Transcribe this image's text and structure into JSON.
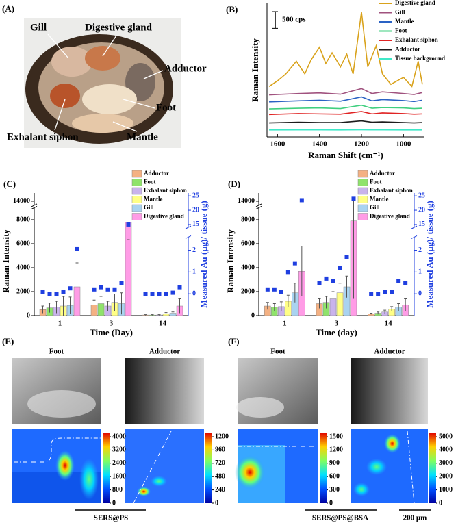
{
  "photo_panel": {
    "label": "(A)",
    "annotations": [
      "Gill",
      "Digestive gland",
      "Adductor",
      "Foot",
      "Exhalant siphon",
      "Mantle"
    ]
  },
  "chart_data": [
    {
      "type": "line",
      "panel_label": "(B)",
      "xlabel": "Raman Shift (cm⁻¹)",
      "ylabel": "Raman Intensity",
      "scale_bar": {
        "value": 500,
        "label": "500 cps"
      },
      "xlim": [
        1650,
        900
      ],
      "xticks": [
        1600,
        1400,
        1200,
        1000
      ],
      "ylim": [
        0,
        4000
      ],
      "legend": "top-right",
      "series": [
        {
          "name": "Digestive gland",
          "color": "#d9a21b",
          "x": [
            1640,
            1600,
            1560,
            1510,
            1470,
            1440,
            1400,
            1370,
            1340,
            1300,
            1270,
            1240,
            1200,
            1170,
            1130,
            1100,
            1060,
            1000,
            960,
            930,
            910
          ],
          "values": [
            1512,
            1680,
            1890,
            2268,
            1890,
            2310,
            2688,
            2205,
            2520,
            2100,
            2478,
            1890,
            3738,
            2100,
            2730,
            1890,
            1575,
            1785,
            1512,
            2268,
            1575
          ]
        },
        {
          "name": "Gill",
          "color": "#a0527e",
          "x": [
            1640,
            1500,
            1400,
            1300,
            1200,
            1150,
            1100,
            1000,
            950,
            910
          ],
          "values": [
            1260,
            1300,
            1320,
            1280,
            1450,
            1300,
            1350,
            1300,
            1270,
            1330
          ]
        },
        {
          "name": "Mantle",
          "color": "#2a62c4",
          "x": [
            1640,
            1500,
            1400,
            1300,
            1200,
            1150,
            1100,
            1000,
            950,
            910
          ],
          "values": [
            1050,
            1080,
            1100,
            1070,
            1200,
            1080,
            1120,
            1090,
            1060,
            1100
          ]
        },
        {
          "name": "Foot",
          "color": "#3fcf7f",
          "x": [
            1640,
            1500,
            1400,
            1300,
            1200,
            1150,
            1100,
            1000,
            950,
            910
          ],
          "values": [
            840,
            860,
            870,
            850,
            950,
            860,
            880,
            870,
            850,
            860
          ]
        },
        {
          "name": "Exhalant siphon",
          "color": "#e02424",
          "x": [
            1640,
            1500,
            1400,
            1300,
            1200,
            1150,
            1100,
            1000,
            950,
            910
          ],
          "values": [
            670,
            700,
            690,
            680,
            760,
            690,
            720,
            700,
            680,
            690
          ]
        },
        {
          "name": "Adductor",
          "color": "#1c1c1c",
          "x": [
            1640,
            1500,
            1400,
            1300,
            1200,
            1150,
            1100,
            1000,
            950,
            910
          ],
          "values": [
            420,
            440,
            430,
            430,
            480,
            440,
            450,
            430,
            420,
            430
          ]
        },
        {
          "name": "Tissue background",
          "color": "#3fe8c8",
          "x": [
            1640,
            1500,
            1400,
            1300,
            1200,
            1150,
            1100,
            1000,
            950,
            910
          ],
          "values": [
            210,
            212,
            212,
            210,
            214,
            212,
            212,
            210,
            210,
            210
          ]
        }
      ]
    },
    {
      "type": "bar",
      "panel_label": "(C)",
      "xlabel": "Time (Day)",
      "ylabel": "Raman Intensity",
      "y2label": "Measured Au (μg)/ tissue (g)",
      "categories": [
        "1",
        "3",
        "14"
      ],
      "ylim": [
        0,
        15000
      ],
      "y_break": [
        9000,
        13500
      ],
      "yticks": [
        0,
        2000,
        4000,
        6000,
        8000,
        14000
      ],
      "y2lim": [
        -1,
        26
      ],
      "y2_break": [
        2.6,
        14
      ],
      "y2ticks": [
        0,
        1,
        2,
        15,
        20,
        25
      ],
      "legend": "top-right",
      "series": [
        {
          "name": "Adductor",
          "color": "#f4b183",
          "values": [
            500,
            900,
            50
          ],
          "errors": [
            300,
            400,
            30
          ]
        },
        {
          "name": "Foot",
          "color": "#8fe36b",
          "values": [
            650,
            1000,
            50
          ],
          "errors": [
            400,
            600,
            30
          ]
        },
        {
          "name": "Exhalant siphon",
          "color": "#c9b3ec",
          "values": [
            700,
            800,
            50
          ],
          "errors": [
            500,
            400,
            30
          ]
        },
        {
          "name": "Mantle",
          "color": "#ffff86",
          "values": [
            800,
            1100,
            150
          ],
          "errors": [
            800,
            700,
            100
          ]
        },
        {
          "name": "Gill",
          "color": "#a9d3f0",
          "values": [
            850,
            1000,
            200
          ],
          "errors": [
            700,
            900,
            100
          ]
        },
        {
          "name": "Digestive gland",
          "color": "#ff9ce6",
          "values": [
            2400,
            7800,
            800
          ],
          "errors": [
            2000,
            1500,
            600
          ]
        },
        {
          "axis": "y2",
          "color": "#1f3fe0",
          "values": [
            0.1,
            0.2,
            0.0
          ]
        },
        {
          "axis": "y2",
          "color": "#1f3fe0",
          "values": [
            0,
            0.3,
            0
          ]
        },
        {
          "axis": "y2",
          "color": "#1f3fe0",
          "values": [
            0,
            0.2,
            0
          ]
        },
        {
          "axis": "y2",
          "color": "#1f3fe0",
          "values": [
            0.1,
            0.2,
            0
          ]
        },
        {
          "axis": "y2",
          "color": "#1f3fe0",
          "values": [
            0.25,
            0.5,
            0.05
          ]
        },
        {
          "axis": "y2",
          "color": "#1f3fe0",
          "values": [
            2.05,
            15,
            0.3
          ]
        }
      ]
    },
    {
      "type": "bar",
      "panel_label": "(D)",
      "xlabel": "Time (day)",
      "ylabel": "Raman Intensity",
      "y2label": "Measured Au (μg)/ tissue (g)",
      "categories": [
        "1",
        "3",
        "14"
      ],
      "ylim": [
        0,
        15000
      ],
      "y_break": [
        9000,
        13500
      ],
      "yticks": [
        0,
        2000,
        4000,
        6000,
        8000,
        14000
      ],
      "y2lim": [
        -1,
        26
      ],
      "y2_break": [
        2.6,
        14
      ],
      "y2ticks": [
        0,
        1,
        2,
        15,
        20,
        25
      ],
      "legend": "top-right",
      "series": [
        {
          "name": "Adductor",
          "color": "#f4b183",
          "values": [
            800,
            1000,
            150
          ],
          "errors": [
            300,
            400,
            50
          ]
        },
        {
          "name": "Foot",
          "color": "#8fe36b",
          "values": [
            700,
            1100,
            200
          ],
          "errors": [
            300,
            500,
            100
          ]
        },
        {
          "name": "Exhalant siphon",
          "color": "#c9b3ec",
          "values": [
            750,
            1400,
            300
          ],
          "errors": [
            400,
            600,
            150
          ]
        },
        {
          "name": "Mantle",
          "color": "#ffff86",
          "values": [
            1200,
            1900,
            550
          ],
          "errors": [
            500,
            800,
            200
          ]
        },
        {
          "name": "Gill",
          "color": "#a9d3f0",
          "values": [
            1900,
            2400,
            700
          ],
          "errors": [
            800,
            900,
            300
          ]
        },
        {
          "name": "Digestive gland",
          "color": "#ff9ce6",
          "values": [
            3700,
            7900,
            900
          ],
          "errors": [
            2100,
            6500,
            500
          ]
        },
        {
          "axis": "y2",
          "color": "#1f3fe0",
          "values": [
            0.2,
            0.5,
            0
          ]
        },
        {
          "axis": "y2",
          "color": "#1f3fe0",
          "values": [
            0.2,
            0.7,
            0
          ]
        },
        {
          "axis": "y2",
          "color": "#1f3fe0",
          "values": [
            0.1,
            0.6,
            0.1
          ]
        },
        {
          "axis": "y2",
          "color": "#1f3fe0",
          "values": [
            1.0,
            1.2,
            0.1
          ]
        },
        {
          "axis": "y2",
          "color": "#1f3fe0",
          "values": [
            1.4,
            1.7,
            0.6
          ]
        },
        {
          "axis": "y2",
          "color": "#1f3fe0",
          "values": [
            23.5,
            24,
            0.5
          ]
        }
      ]
    }
  ],
  "map_panels": [
    {
      "label": "(E)",
      "caption": "SERS@PS",
      "maps": [
        {
          "title": "Foot",
          "colorbar_ticks": [
            0,
            800,
            1600,
            2400,
            3200,
            4000
          ]
        },
        {
          "title": "Adductor",
          "colorbar_ticks": [
            0,
            240,
            480,
            720,
            960,
            1200
          ]
        }
      ]
    },
    {
      "label": "(F)",
      "caption": "SERS@PS@BSA",
      "maps": [
        {
          "title": "Foot",
          "colorbar_ticks": [
            0,
            300,
            600,
            900,
            1200,
            1500
          ]
        },
        {
          "title": "Adductor",
          "colorbar_ticks": [
            0,
            1000,
            2000,
            3000,
            4000,
            5000
          ]
        }
      ]
    }
  ],
  "scale_bar": "200 μm"
}
